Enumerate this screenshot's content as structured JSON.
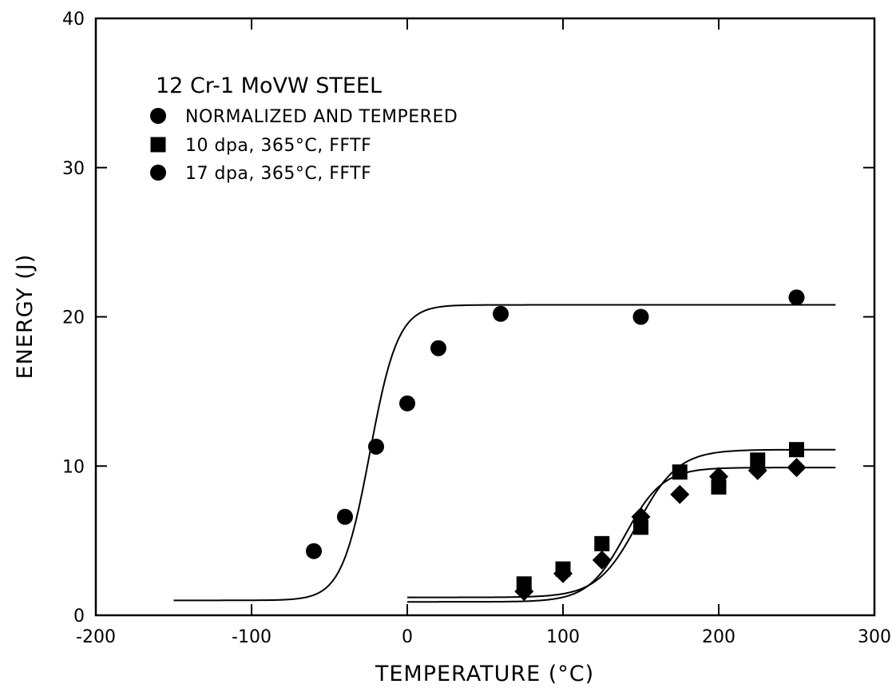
{
  "chart_data": {
    "type": "scatter",
    "title": "12 Cr-1 MoVW STEEL",
    "xlabel": "TEMPERATURE (°C)",
    "ylabel": "ENERGY (J)",
    "xlim": [
      -200,
      300
    ],
    "ylim": [
      0,
      40
    ],
    "xticks": [
      -200,
      -100,
      0,
      100,
      200,
      300
    ],
    "yticks": [
      0,
      10,
      20,
      30,
      40
    ],
    "xtick_labels": [
      "-200",
      "-100",
      "0",
      "100",
      "200",
      "300"
    ],
    "ytick_labels": [
      "0",
      "10",
      "20",
      "30",
      "40"
    ],
    "grid": false,
    "legend_position": "top-left",
    "series": [
      {
        "name": "NORMALIZED AND TEMPERED",
        "marker": "circle",
        "x": [
          -60,
          -40,
          -20,
          0,
          20,
          60,
          150,
          250
        ],
        "y": [
          4.3,
          6.6,
          11.3,
          14.2,
          17.9,
          20.2,
          20.0,
          21.3
        ]
      },
      {
        "name": "10 dpa, 365°C, FFTF",
        "marker": "square",
        "x": [
          75,
          100,
          125,
          150,
          175,
          200,
          225,
          250
        ],
        "y": [
          2.1,
          3.1,
          4.8,
          5.9,
          9.6,
          8.6,
          10.4,
          11.1
        ]
      },
      {
        "name": "17 dpa, 365°C, FFTF",
        "marker": "diamond",
        "x": [
          75,
          100,
          125,
          150,
          175,
          200,
          225,
          250
        ],
        "y": [
          1.6,
          2.8,
          3.7,
          6.6,
          8.1,
          9.3,
          9.7,
          9.9
        ]
      }
    ],
    "fit_curves": [
      {
        "series": "NORMALIZED AND TEMPERED",
        "lower": 1.0,
        "upper": 20.8,
        "midpoint": -24,
        "width": 18,
        "xrange": [
          -150,
          275
        ]
      },
      {
        "series": "10 dpa, 365°C, FFTF",
        "lower": 1.2,
        "upper": 11.1,
        "midpoint": 148,
        "width": 26,
        "xrange": [
          0,
          275
        ]
      },
      {
        "series": "17 dpa, 365°C, FFTF",
        "lower": 0.9,
        "upper": 9.9,
        "midpoint": 140,
        "width": 24,
        "xrange": [
          0,
          275
        ]
      }
    ]
  }
}
